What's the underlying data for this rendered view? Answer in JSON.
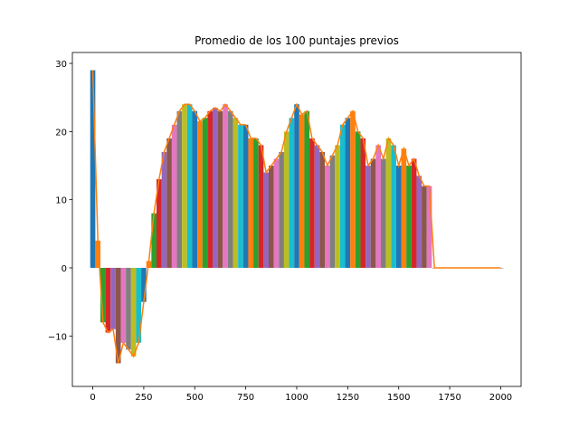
{
  "chart_data": {
    "type": "bar",
    "title": "Promedio de los 100 puntajes previos",
    "x": [
      0,
      25,
      50,
      75,
      100,
      125,
      150,
      175,
      200,
      225,
      250,
      275,
      300,
      325,
      350,
      375,
      400,
      425,
      450,
      475,
      500,
      525,
      550,
      575,
      600,
      625,
      650,
      675,
      700,
      725,
      750,
      775,
      800,
      825,
      850,
      875,
      900,
      925,
      950,
      975,
      1000,
      1025,
      1050,
      1075,
      1100,
      1125,
      1150,
      1175,
      1200,
      1225,
      1250,
      1275,
      1300,
      1325,
      1350,
      1375,
      1400,
      1425,
      1450,
      1475,
      1500,
      1525,
      1550,
      1575,
      1600,
      1625,
      1650,
      1675,
      1700,
      1725,
      1750,
      1775,
      1800,
      1825,
      1850,
      1875,
      1900,
      1925,
      1950,
      1975,
      2000
    ],
    "values": [
      29,
      4,
      -8,
      -9.5,
      -9,
      -14,
      -11,
      -12,
      -13,
      -11,
      -5,
      1,
      8,
      13,
      17,
      19,
      21,
      23,
      24,
      24,
      23,
      21.5,
      22,
      23,
      23.5,
      23,
      24,
      23,
      22,
      21,
      21,
      19,
      19,
      18,
      14,
      15,
      16,
      17,
      20,
      22,
      24,
      22.5,
      23,
      19,
      18,
      17,
      15,
      16.5,
      18,
      21,
      22,
      23,
      20,
      19,
      15,
      16,
      18,
      16,
      19,
      18,
      15,
      17.5,
      15,
      16,
      13.5,
      12,
      12,
      0,
      0,
      0,
      0,
      0,
      0,
      0,
      0,
      0,
      0,
      0,
      0,
      0,
      0
    ],
    "bar_colors": [
      "#1f77b4",
      "#ff7f0e",
      "#2ca02c",
      "#d62728",
      "#9467bd",
      "#8c564b",
      "#e377c2",
      "#7f7f7f",
      "#bcbd22",
      "#17becf"
    ],
    "line_color": "#ff7f0e",
    "xlim": [
      -100,
      2100
    ],
    "ylim": [
      -17.4,
      31.6
    ],
    "xticks": [
      0,
      250,
      500,
      750,
      1000,
      1250,
      1500,
      1750,
      2000
    ],
    "yticks": [
      {
        "value": -10,
        "label": "−10"
      },
      0,
      10,
      20,
      30
    ]
  }
}
